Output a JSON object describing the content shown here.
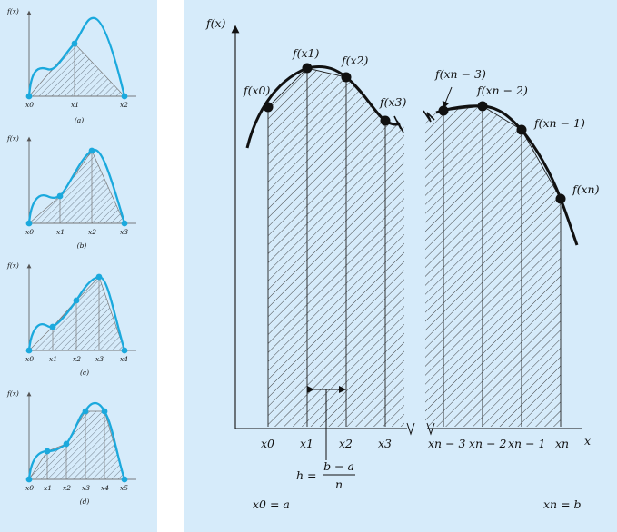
{
  "colors": {
    "panel_background": "#d6ebfa",
    "curve_small": "#1ba9dd",
    "curve_large": "#111111"
  },
  "small_panels": [
    {
      "ylabel": "f(x)",
      "caption": "(a)",
      "ticks": [
        "x0",
        "x1",
        "x2"
      ]
    },
    {
      "ylabel": "f(x)",
      "caption": "(b)",
      "ticks": [
        "x0",
        "x1",
        "x2",
        "x3"
      ]
    },
    {
      "ylabel": "f(x)",
      "caption": "(c)",
      "ticks": [
        "x0",
        "x1",
        "x2",
        "x3",
        "x4"
      ]
    },
    {
      "ylabel": "f(x)",
      "caption": "(d)",
      "ticks": [
        "x0",
        "x1",
        "x2",
        "x3",
        "x4",
        "x5"
      ]
    }
  ],
  "main": {
    "ylabel": "f(x)",
    "xlabel": "x",
    "point_labels_left": [
      "f(x0)",
      "f(x1)",
      "f(x2)",
      "f(x3)"
    ],
    "point_labels_right": [
      "f(xn − 3)",
      "f(xn − 2)",
      "f(xn − 1)",
      "f(xn)"
    ],
    "ticks_left": [
      "x0",
      "x1",
      "x2",
      "x3"
    ],
    "ticks_right": [
      "xn − 3",
      "xn − 2",
      "xn − 1",
      "xn"
    ],
    "h_formula": {
      "lhs": "h =",
      "numerator": "b − a",
      "denominator": "n"
    },
    "x0_eq": "x0 = a",
    "xn_eq": "xn = b"
  }
}
